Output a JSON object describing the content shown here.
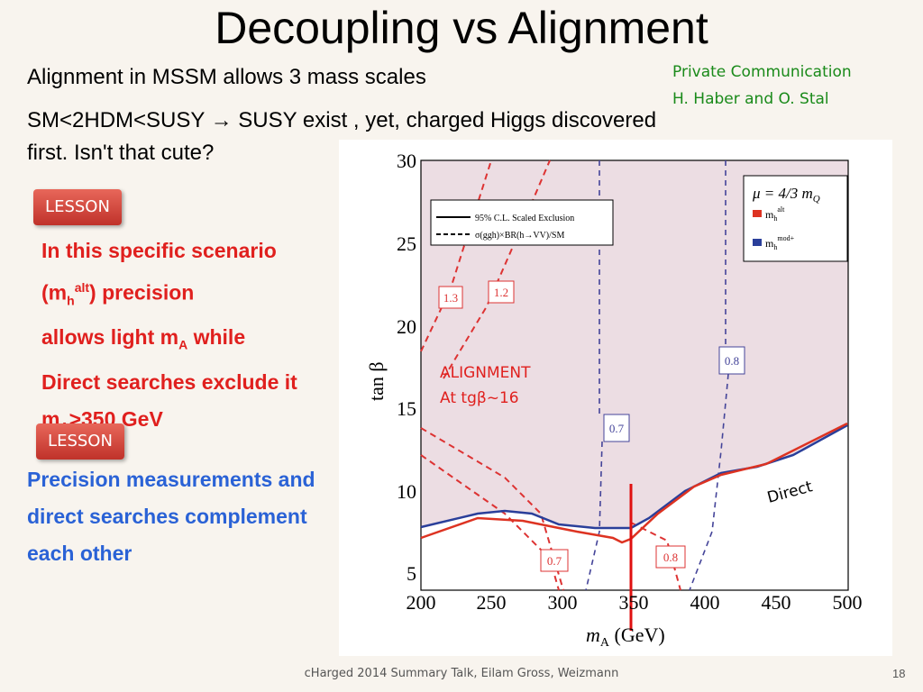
{
  "title": "Decoupling vs Alignment",
  "intro": [
    "Alignment in MSSM allows 3 mass scales",
    "SM<2HDM<SUSY  → SUSY exist , yet, charged Higgs discovered",
    "first.  Isn't that cute?"
  ],
  "note": [
    "Private Communication",
    "H. Haber and O. Stal"
  ],
  "lesson1": {
    "badge": "LESSON",
    "line1": "In this specific scenario",
    "line2": {
      "a": "(m",
      "sub": "h",
      "sup": "alt",
      "b": ") precision"
    },
    "line3": {
      "a": "allows light m",
      "sub": "A",
      "b": " while"
    },
    "line4": "Direct searches exclude it",
    "line5": {
      "a": "m",
      "sub": "A",
      "b": ">350 GeV"
    }
  },
  "lesson2": {
    "badge": "LESSON",
    "lines": [
      "Precision measurements and",
      "direct searches complement",
      "each other"
    ]
  },
  "plot": {
    "xticks": [
      "200",
      "250",
      "300",
      "350",
      "400",
      "450",
      "500"
    ],
    "yticks": [
      "30",
      "25",
      "20",
      "15",
      "10",
      "5"
    ],
    "xlabel": {
      "a": "m",
      "sub": "A",
      "b": " (GeV)"
    },
    "ylabel": "tan β",
    "legend": [
      "95% C.L. Scaled Exclusion",
      "σ(ggh)×BR(h→VV)/SM"
    ],
    "mu": "μ = 4/3 m",
    "mu_sub": "Q",
    "series": [
      {
        "a": "m",
        "sub": "h",
        "sup": "alt"
      },
      {
        "a": "m",
        "sub": "h",
        "sup": "mod+"
      }
    ],
    "contours": [
      "1.3",
      "1.2",
      "0.7",
      "0.8",
      "0.7",
      "0.8"
    ],
    "annotations": [
      "ALIGNMENT",
      "At tgβ~16",
      "Direct"
    ]
  },
  "footer": "cHarged 2014 Summary Talk, Eilam Gross, Weizmann",
  "page": "18"
}
